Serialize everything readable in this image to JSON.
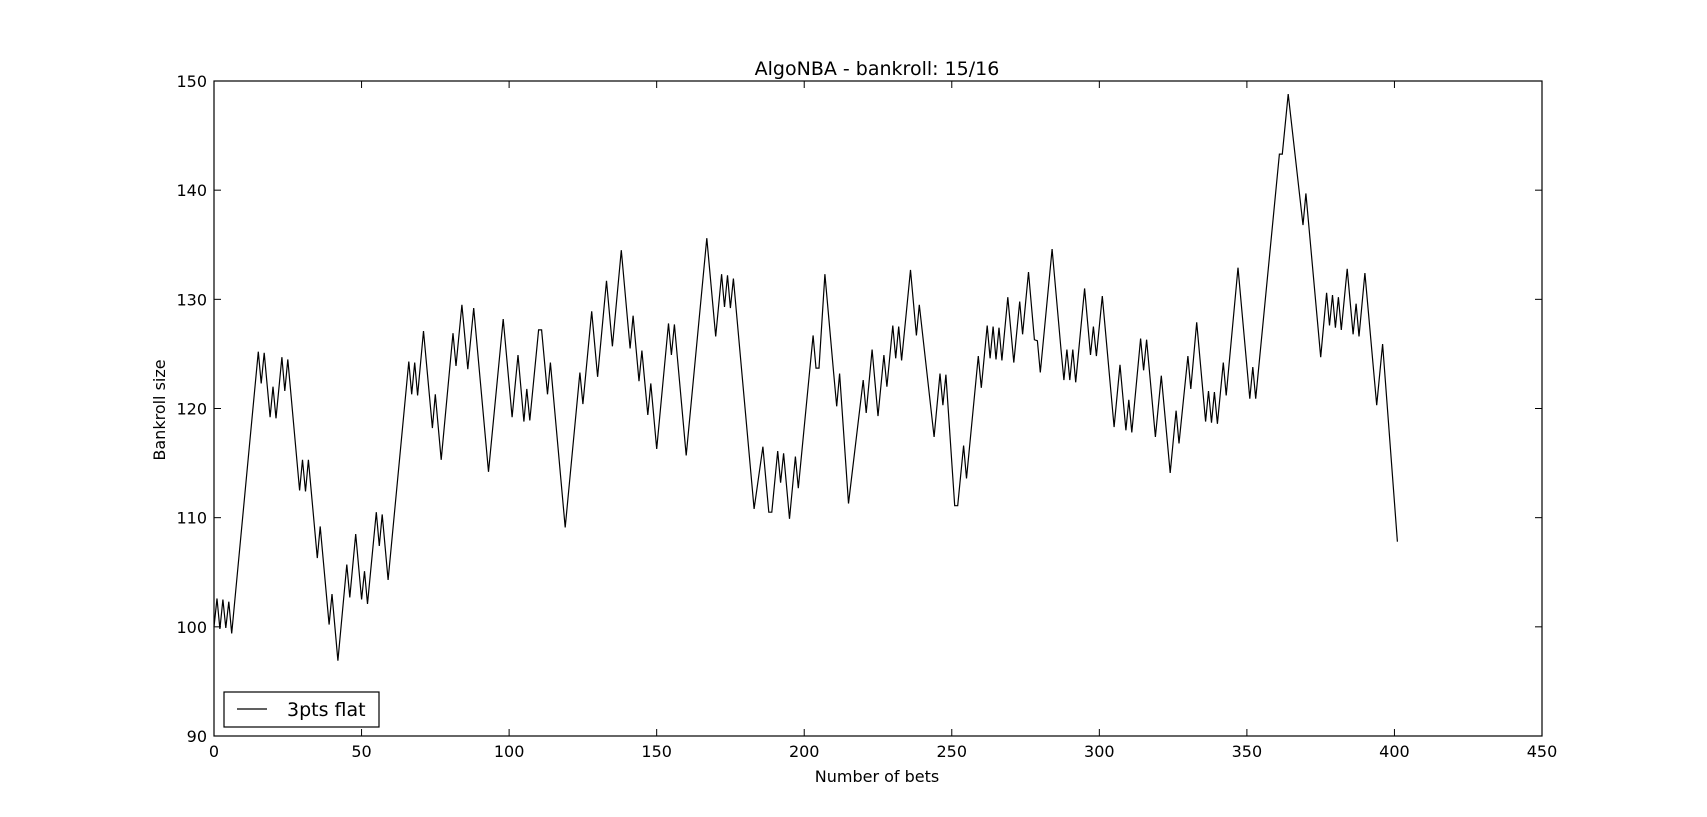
{
  "chart_data": {
    "type": "line",
    "title": "AlgoNBA - bankroll: 15/16",
    "xlabel": "Number of bets",
    "ylabel": "Bankroll size",
    "xlim": [
      0,
      450
    ],
    "ylim": [
      90,
      150
    ],
    "xticks": [
      0,
      50,
      100,
      150,
      200,
      250,
      300,
      350,
      400,
      450
    ],
    "yticks": [
      90,
      100,
      110,
      120,
      130,
      140,
      150
    ],
    "grid": false,
    "legend_position": "lower-left",
    "series": [
      {
        "name": "3pts flat",
        "color": "#000000",
        "points": [
          [
            0,
            100
          ],
          [
            1,
            102.6
          ],
          [
            2,
            99.8
          ],
          [
            3,
            102.5
          ],
          [
            4,
            99.9
          ],
          [
            5,
            102.3
          ],
          [
            6,
            99.4
          ],
          [
            15,
            125.2
          ],
          [
            16,
            122.3
          ],
          [
            17,
            125.1
          ],
          [
            19,
            119.2
          ],
          [
            20,
            122.0
          ],
          [
            21,
            119.1
          ],
          [
            23,
            124.7
          ],
          [
            24,
            121.6
          ],
          [
            25,
            124.5
          ],
          [
            29,
            112.5
          ],
          [
            30,
            115.3
          ],
          [
            31,
            112.4
          ],
          [
            32,
            115.3
          ],
          [
            35,
            106.3
          ],
          [
            36,
            109.2
          ],
          [
            39,
            100.2
          ],
          [
            40,
            103.0
          ],
          [
            42,
            96.9
          ],
          [
            45,
            105.7
          ],
          [
            46,
            102.7
          ],
          [
            48,
            108.5
          ],
          [
            50,
            102.5
          ],
          [
            51,
            105.1
          ],
          [
            52,
            102.1
          ],
          [
            55,
            110.5
          ],
          [
            56,
            107.4
          ],
          [
            57,
            110.3
          ],
          [
            59,
            104.3
          ],
          [
            66,
            124.3
          ],
          [
            67,
            121.3
          ],
          [
            68,
            124.2
          ],
          [
            69,
            121.2
          ],
          [
            71,
            127.1
          ],
          [
            74,
            118.2
          ],
          [
            75,
            121.3
          ],
          [
            77,
            115.3
          ],
          [
            81,
            126.9
          ],
          [
            82,
            123.9
          ],
          [
            84,
            129.5
          ],
          [
            86,
            123.6
          ],
          [
            88,
            129.2
          ],
          [
            93,
            114.2
          ],
          [
            98,
            128.2
          ],
          [
            101,
            119.2
          ],
          [
            103,
            124.9
          ],
          [
            105,
            118.8
          ],
          [
            106,
            121.8
          ],
          [
            107,
            118.9
          ],
          [
            110,
            127.2
          ],
          [
            111,
            127.2
          ],
          [
            113,
            121.3
          ],
          [
            114,
            124.2
          ],
          [
            119,
            109.1
          ],
          [
            124,
            123.3
          ],
          [
            125,
            120.4
          ],
          [
            128,
            128.9
          ],
          [
            130,
            122.9
          ],
          [
            133,
            131.7
          ],
          [
            135,
            125.7
          ],
          [
            138,
            134.5
          ],
          [
            141,
            125.5
          ],
          [
            142,
            128.5
          ],
          [
            144,
            122.5
          ],
          [
            145,
            125.3
          ],
          [
            147,
            119.4
          ],
          [
            148,
            122.3
          ],
          [
            150,
            116.3
          ],
          [
            154,
            127.8
          ],
          [
            155,
            124.9
          ],
          [
            156,
            127.7
          ],
          [
            160,
            115.7
          ],
          [
            167,
            135.6
          ],
          [
            170,
            126.6
          ],
          [
            172,
            132.3
          ],
          [
            173,
            129.3
          ],
          [
            174,
            132.2
          ],
          [
            175,
            129.2
          ],
          [
            176,
            131.9
          ],
          [
            183,
            110.8
          ],
          [
            186,
            116.5
          ],
          [
            188,
            110.5
          ],
          [
            189,
            110.5
          ],
          [
            191,
            116.1
          ],
          [
            192,
            113.2
          ],
          [
            193,
            115.9
          ],
          [
            195,
            109.9
          ],
          [
            197,
            115.6
          ],
          [
            198,
            112.7
          ],
          [
            203,
            126.7
          ],
          [
            204,
            123.7
          ],
          [
            205,
            123.7
          ],
          [
            207,
            132.3
          ],
          [
            210,
            123.2
          ],
          [
            211,
            120.2
          ],
          [
            212,
            123.2
          ],
          [
            215,
            111.3
          ],
          [
            220,
            122.6
          ],
          [
            221,
            119.6
          ],
          [
            223,
            125.4
          ],
          [
            225,
            119.3
          ],
          [
            227,
            124.9
          ],
          [
            228,
            122.0
          ],
          [
            230,
            127.6
          ],
          [
            231,
            124.6
          ],
          [
            232,
            127.5
          ],
          [
            233,
            124.4
          ],
          [
            236,
            132.7
          ],
          [
            238,
            126.7
          ],
          [
            239,
            129.5
          ],
          [
            244,
            117.4
          ],
          [
            246,
            123.2
          ],
          [
            247,
            120.3
          ],
          [
            248,
            123.1
          ],
          [
            251,
            111.1
          ],
          [
            252,
            111.1
          ],
          [
            254,
            116.6
          ],
          [
            255,
            113.6
          ],
          [
            259,
            124.8
          ],
          [
            260,
            121.9
          ],
          [
            262,
            127.6
          ],
          [
            263,
            124.6
          ],
          [
            264,
            127.5
          ],
          [
            265,
            124.5
          ],
          [
            266,
            127.4
          ],
          [
            267,
            124.4
          ],
          [
            269,
            130.2
          ],
          [
            271,
            124.2
          ],
          [
            273,
            129.8
          ],
          [
            274,
            126.8
          ],
          [
            276,
            132.5
          ],
          [
            278,
            126.3
          ],
          [
            279,
            126.2
          ],
          [
            280,
            123.3
          ],
          [
            284,
            134.6
          ],
          [
            287,
            125.4
          ],
          [
            288,
            122.6
          ],
          [
            289,
            125.4
          ],
          [
            290,
            122.6
          ],
          [
            291,
            125.4
          ],
          [
            292,
            122.4
          ],
          [
            295,
            131.0
          ],
          [
            297,
            124.9
          ],
          [
            298,
            127.5
          ],
          [
            299,
            124.8
          ],
          [
            301,
            130.3
          ],
          [
            305,
            118.3
          ],
          [
            307,
            124.0
          ],
          [
            309,
            118.0
          ],
          [
            310,
            120.8
          ],
          [
            311,
            117.8
          ],
          [
            314,
            126.4
          ],
          [
            315,
            123.5
          ],
          [
            316,
            126.3
          ],
          [
            319,
            117.4
          ],
          [
            321,
            123.0
          ],
          [
            324,
            114.1
          ],
          [
            326,
            119.8
          ],
          [
            327,
            116.8
          ],
          [
            330,
            124.8
          ],
          [
            331,
            121.8
          ],
          [
            333,
            127.9
          ],
          [
            336,
            118.8
          ],
          [
            337,
            121.6
          ],
          [
            338,
            118.7
          ],
          [
            339,
            121.5
          ],
          [
            340,
            118.6
          ],
          [
            342,
            124.2
          ],
          [
            343,
            121.2
          ],
          [
            347,
            132.9
          ],
          [
            351,
            120.9
          ],
          [
            352,
            123.8
          ],
          [
            353,
            120.9
          ],
          [
            361,
            143.3
          ],
          [
            362,
            143.3
          ],
          [
            364,
            148.8
          ],
          [
            369,
            136.8
          ],
          [
            370,
            139.7
          ],
          [
            375,
            124.7
          ],
          [
            377,
            130.6
          ],
          [
            378,
            127.6
          ],
          [
            379,
            130.4
          ],
          [
            380,
            127.4
          ],
          [
            381,
            130.2
          ],
          [
            382,
            127.2
          ],
          [
            384,
            132.8
          ],
          [
            386,
            126.8
          ],
          [
            387,
            129.6
          ],
          [
            388,
            126.6
          ],
          [
            390,
            132.4
          ],
          [
            394,
            120.3
          ],
          [
            396,
            125.9
          ],
          [
            401,
            107.8
          ]
        ]
      }
    ]
  }
}
